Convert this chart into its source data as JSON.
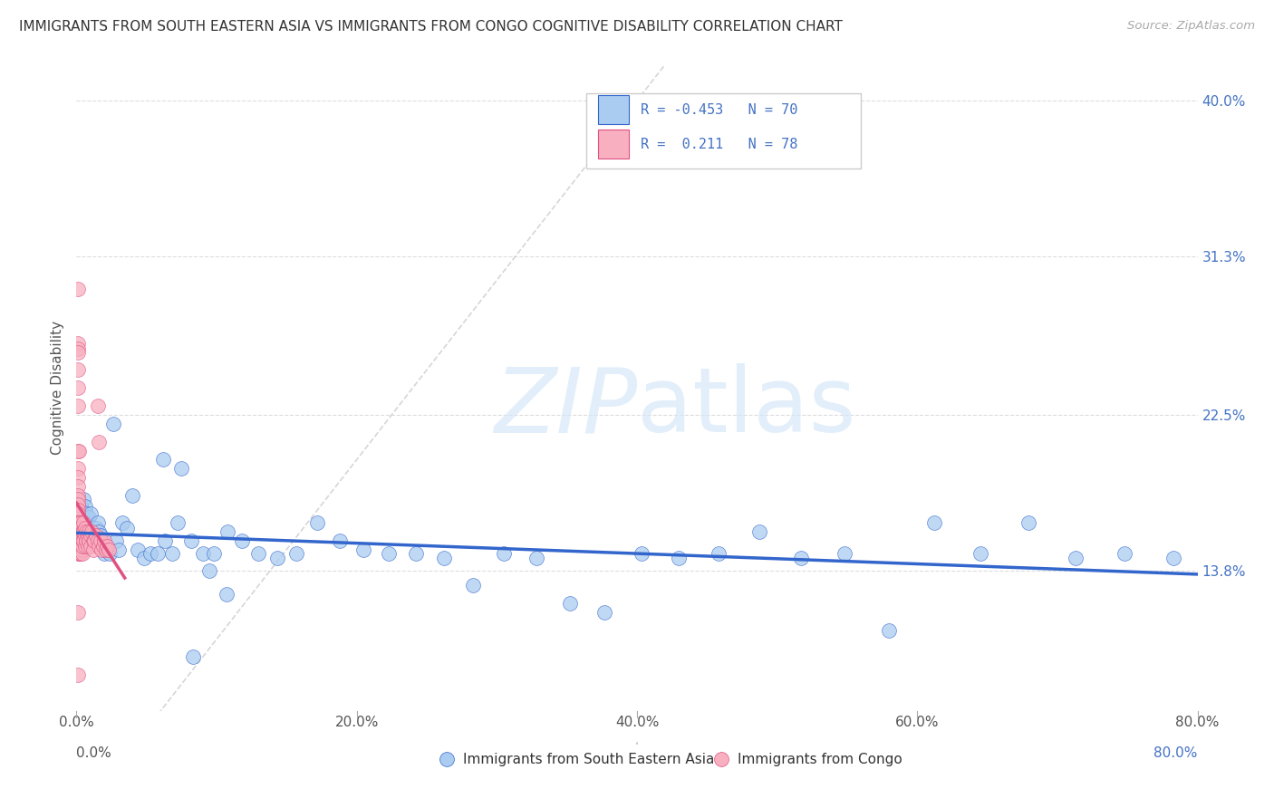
{
  "title": "IMMIGRANTS FROM SOUTH EASTERN ASIA VS IMMIGRANTS FROM CONGO COGNITIVE DISABILITY CORRELATION CHART",
  "source": "Source: ZipAtlas.com",
  "ylabel": "Cognitive Disability",
  "xlim": [
    0.0,
    0.8
  ],
  "ylim": [
    0.06,
    0.42
  ],
  "r_sea": -0.453,
  "n_sea": 70,
  "r_congo": 0.211,
  "n_congo": 78,
  "color_sea": "#aaccf0",
  "color_sea_line": "#3366cc",
  "color_congo": "#f8b0c0",
  "color_congo_line": "#e05080",
  "color_diagonal": "#cccccc",
  "legend_label_sea": "Immigrants from South Eastern Asia",
  "legend_label_congo": "Immigrants from Congo",
  "ytick_positions": [
    0.138,
    0.225,
    0.313,
    0.4
  ],
  "ytick_labels": [
    "13.8%",
    "22.5%",
    "31.3%",
    "40.0%"
  ],
  "xtick_positions": [
    0.0,
    0.2,
    0.4,
    0.6,
    0.8
  ],
  "xtick_labels": [
    "0.0%",
    "20.0%",
    "40.0%",
    "60.0%",
    "80.0%"
  ],
  "sea_x": [
    0.003,
    0.004,
    0.005,
    0.006,
    0.007,
    0.008,
    0.009,
    0.01,
    0.011,
    0.012,
    0.013,
    0.014,
    0.015,
    0.016,
    0.017,
    0.018,
    0.019,
    0.02,
    0.022,
    0.024,
    0.026,
    0.028,
    0.03,
    0.033,
    0.036,
    0.04,
    0.044,
    0.048,
    0.053,
    0.058,
    0.063,
    0.068,
    0.075,
    0.082,
    0.09,
    0.098,
    0.108,
    0.118,
    0.13,
    0.143,
    0.157,
    0.172,
    0.188,
    0.205,
    0.223,
    0.242,
    0.262,
    0.283,
    0.305,
    0.328,
    0.352,
    0.377,
    0.403,
    0.43,
    0.458,
    0.487,
    0.517,
    0.548,
    0.58,
    0.612,
    0.645,
    0.679,
    0.713,
    0.748,
    0.783,
    0.062,
    0.072,
    0.083,
    0.095,
    0.107
  ],
  "sea_y": [
    0.175,
    0.172,
    0.178,
    0.174,
    0.17,
    0.165,
    0.168,
    0.17,
    0.16,
    0.162,
    0.158,
    0.162,
    0.165,
    0.16,
    0.158,
    0.155,
    0.15,
    0.148,
    0.152,
    0.148,
    0.22,
    0.155,
    0.15,
    0.165,
    0.162,
    0.18,
    0.15,
    0.145,
    0.148,
    0.148,
    0.155,
    0.148,
    0.195,
    0.155,
    0.148,
    0.148,
    0.16,
    0.155,
    0.148,
    0.145,
    0.148,
    0.165,
    0.155,
    0.15,
    0.148,
    0.148,
    0.145,
    0.13,
    0.148,
    0.145,
    0.12,
    0.115,
    0.148,
    0.145,
    0.148,
    0.16,
    0.145,
    0.148,
    0.105,
    0.165,
    0.148,
    0.165,
    0.145,
    0.148,
    0.145,
    0.2,
    0.165,
    0.09,
    0.138,
    0.125
  ],
  "congo_x": [
    0.001,
    0.001,
    0.001,
    0.001,
    0.001,
    0.001,
    0.001,
    0.001,
    0.001,
    0.001,
    0.001,
    0.001,
    0.001,
    0.001,
    0.001,
    0.001,
    0.001,
    0.001,
    0.001,
    0.001,
    0.002,
    0.002,
    0.002,
    0.002,
    0.002,
    0.002,
    0.002,
    0.002,
    0.002,
    0.002,
    0.002,
    0.003,
    0.003,
    0.003,
    0.003,
    0.003,
    0.003,
    0.004,
    0.004,
    0.004,
    0.004,
    0.004,
    0.005,
    0.005,
    0.005,
    0.006,
    0.006,
    0.006,
    0.007,
    0.007,
    0.008,
    0.008,
    0.009,
    0.009,
    0.01,
    0.01,
    0.011,
    0.012,
    0.012,
    0.013,
    0.014,
    0.015,
    0.016,
    0.017,
    0.018,
    0.019,
    0.02,
    0.021,
    0.022,
    0.023,
    0.001,
    0.001,
    0.001,
    0.002,
    0.015,
    0.001,
    0.001,
    0.016
  ],
  "congo_y": [
    0.175,
    0.265,
    0.262,
    0.25,
    0.23,
    0.205,
    0.195,
    0.19,
    0.185,
    0.18,
    0.178,
    0.175,
    0.172,
    0.17,
    0.165,
    0.162,
    0.16,
    0.158,
    0.155,
    0.153,
    0.165,
    0.16,
    0.155,
    0.15,
    0.148,
    0.162,
    0.155,
    0.15,
    0.148,
    0.152,
    0.148,
    0.165,
    0.158,
    0.152,
    0.148,
    0.162,
    0.158,
    0.16,
    0.155,
    0.15,
    0.148,
    0.152,
    0.165,
    0.16,
    0.155,
    0.162,
    0.158,
    0.152,
    0.16,
    0.155,
    0.158,
    0.152,
    0.16,
    0.155,
    0.158,
    0.152,
    0.16,
    0.155,
    0.15,
    0.155,
    0.158,
    0.155,
    0.152,
    0.155,
    0.15,
    0.152,
    0.155,
    0.15,
    0.152,
    0.15,
    0.08,
    0.115,
    0.295,
    0.205,
    0.23,
    0.24,
    0.26,
    0.21
  ]
}
